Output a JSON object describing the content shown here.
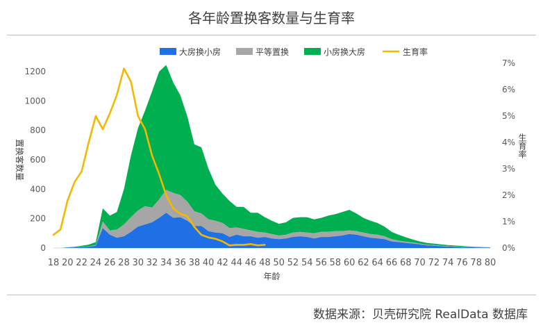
{
  "chart_data": {
    "type": "area",
    "title": "各年龄置换客数量与生育率",
    "xlabel": "年龄",
    "ylabel_left": "置换客数量",
    "ylabel_right": "生育率",
    "xlim": [
      18,
      80
    ],
    "ylim_left": [
      0,
      1300
    ],
    "ylim_right": [
      0,
      0.07
    ],
    "left_ticks": [
      "0",
      "200",
      "400",
      "600",
      "800",
      "1000",
      "1200"
    ],
    "right_ticks": [
      "0%",
      "1%",
      "2%",
      "3%",
      "4%",
      "5%",
      "6%",
      "7%"
    ],
    "x_ticks": [
      18,
      20,
      22,
      24,
      26,
      28,
      30,
      32,
      34,
      36,
      38,
      40,
      42,
      44,
      46,
      48,
      50,
      52,
      54,
      56,
      58,
      60,
      62,
      64,
      66,
      68,
      70,
      72,
      74,
      76,
      78,
      80
    ],
    "stacked": true,
    "legend_position": "top",
    "series": [
      {
        "name": "大房换小房",
        "color": "#1f6fe5",
        "x": [
          18,
          19,
          20,
          21,
          22,
          23,
          24,
          25,
          26,
          27,
          28,
          29,
          30,
          31,
          32,
          33,
          34,
          35,
          36,
          37,
          38,
          39,
          40,
          41,
          42,
          43,
          44,
          45,
          46,
          47,
          48,
          49,
          50,
          51,
          52,
          53,
          54,
          55,
          56,
          57,
          58,
          59,
          60,
          61,
          62,
          63,
          64,
          65,
          66,
          67,
          68,
          69,
          70,
          71,
          72,
          73,
          74,
          75,
          76,
          77,
          78,
          79,
          80
        ],
        "values": [
          0,
          0,
          2,
          3,
          5,
          8,
          15,
          135,
          90,
          70,
          80,
          110,
          145,
          160,
          175,
          205,
          240,
          205,
          210,
          185,
          150,
          150,
          115,
          105,
          100,
          75,
          90,
          80,
          80,
          70,
          75,
          65,
          60,
          65,
          75,
          80,
          75,
          65,
          75,
          75,
          80,
          85,
          95,
          90,
          80,
          70,
          65,
          60,
          45,
          40,
          35,
          30,
          25,
          18,
          15,
          12,
          10,
          8,
          6,
          5,
          4,
          3,
          2
        ]
      },
      {
        "name": "平等置换",
        "color": "#a6a6a6",
        "x": [
          18,
          19,
          20,
          21,
          22,
          23,
          24,
          25,
          26,
          27,
          28,
          29,
          30,
          31,
          32,
          33,
          34,
          35,
          36,
          37,
          38,
          39,
          40,
          41,
          42,
          43,
          44,
          45,
          46,
          47,
          48,
          49,
          50,
          51,
          52,
          53,
          54,
          55,
          56,
          57,
          58,
          59,
          60,
          61,
          62,
          63,
          64,
          65,
          66,
          67,
          68,
          69,
          70,
          71,
          72,
          73,
          74,
          75,
          76,
          77,
          78,
          79,
          80
        ],
        "values": [
          0,
          0,
          1,
          1,
          2,
          3,
          5,
          45,
          30,
          55,
          80,
          100,
          110,
          125,
          100,
          125,
          155,
          170,
          150,
          130,
          100,
          85,
          80,
          80,
          70,
          60,
          50,
          50,
          40,
          40,
          30,
          30,
          25,
          25,
          30,
          30,
          30,
          35,
          35,
          35,
          35,
          30,
          25,
          25,
          25,
          25,
          25,
          20,
          15,
          10,
          8,
          8,
          5,
          5,
          5,
          4,
          3,
          3,
          3,
          2,
          2,
          1,
          1
        ]
      },
      {
        "name": "小房换大房",
        "color": "#00b050",
        "x": [
          18,
          19,
          20,
          21,
          22,
          23,
          24,
          25,
          26,
          27,
          28,
          29,
          30,
          31,
          32,
          33,
          34,
          35,
          36,
          37,
          38,
          39,
          40,
          41,
          42,
          43,
          44,
          45,
          46,
          47,
          48,
          49,
          50,
          51,
          52,
          53,
          54,
          55,
          56,
          57,
          58,
          59,
          60,
          61,
          62,
          63,
          64,
          65,
          66,
          67,
          68,
          69,
          70,
          71,
          72,
          73,
          74,
          75,
          76,
          77,
          78,
          79,
          80
        ],
        "values": [
          0,
          0,
          2,
          4,
          8,
          12,
          20,
          90,
          100,
          120,
          240,
          420,
          560,
          650,
          790,
          870,
          850,
          750,
          680,
          580,
          455,
          450,
          345,
          245,
          200,
          185,
          140,
          150,
          120,
          130,
          105,
          90,
          80,
          85,
          100,
          100,
          105,
          95,
          95,
          110,
          115,
          130,
          140,
          120,
          100,
          90,
          80,
          65,
          50,
          40,
          30,
          20,
          15,
          12,
          10,
          9,
          7,
          6,
          5,
          4,
          3,
          2,
          2
        ]
      },
      {
        "name": "生育率",
        "color": "#f4b800",
        "axis": "right",
        "x": [
          18,
          19,
          20,
          21,
          22,
          23,
          24,
          25,
          26,
          27,
          28,
          29,
          30,
          31,
          32,
          33,
          34,
          35,
          36,
          37,
          38,
          39,
          40,
          41,
          42,
          43,
          44,
          45,
          46,
          47,
          48
        ],
        "values": [
          0.005,
          0.007,
          0.018,
          0.025,
          0.029,
          0.04,
          0.05,
          0.045,
          0.051,
          0.058,
          0.068,
          0.063,
          0.05,
          0.045,
          0.035,
          0.028,
          0.02,
          0.015,
          0.013,
          0.012,
          0.008,
          0.005,
          0.004,
          0.0035,
          0.0025,
          0.001,
          0.0012,
          0.0012,
          0.0015,
          0.001,
          0.0012
        ]
      }
    ]
  },
  "source": "数据来源：贝壳研究院 RealData 数据库"
}
